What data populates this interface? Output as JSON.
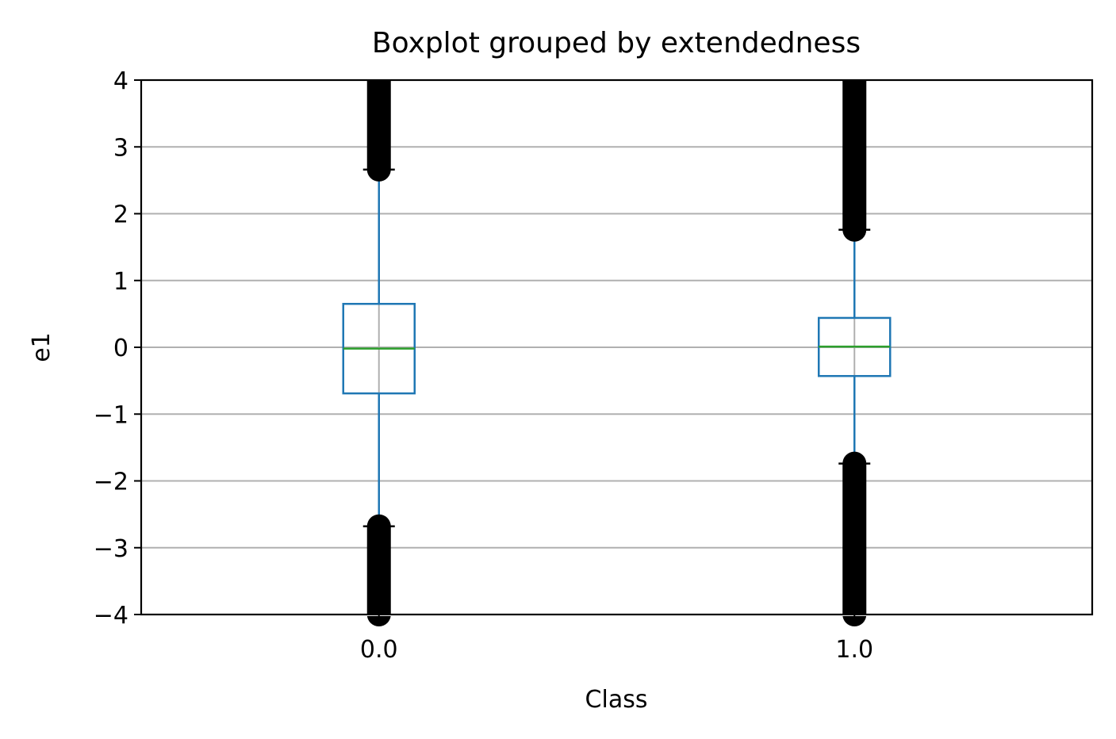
{
  "chart_data": {
    "type": "box",
    "title": "Boxplot grouped by extendedness",
    "xlabel": "Class",
    "ylabel": "e1",
    "categories": [
      "0.0",
      "1.0"
    ],
    "ylim": [
      -4,
      4
    ],
    "yticks": [
      -4,
      -3,
      -2,
      -1,
      0,
      1,
      2,
      3,
      4
    ],
    "ytick_labels": [
      "−4",
      "−3",
      "−2",
      "−1",
      "0",
      "1",
      "2",
      "3",
      "4"
    ],
    "grid": true,
    "boxes": [
      {
        "category": "0.0",
        "whisker_low": -2.68,
        "q1": -0.69,
        "median": -0.02,
        "q3": 0.65,
        "whisker_high": 2.66,
        "outliers_low_range": [
          -4,
          -2.68
        ],
        "outliers_high_range": [
          2.66,
          4
        ]
      },
      {
        "category": "1.0",
        "whisker_low": -1.74,
        "q1": -0.43,
        "median": 0.01,
        "q3": 0.44,
        "whisker_high": 1.76,
        "outliers_low_range": [
          -4,
          -1.74
        ],
        "outliers_high_range": [
          1.76,
          4
        ]
      }
    ],
    "colors": {
      "box": "#1f77b4",
      "median": "#2ca02c",
      "outlier": "#000000",
      "grid": "#b0b0b0"
    }
  }
}
